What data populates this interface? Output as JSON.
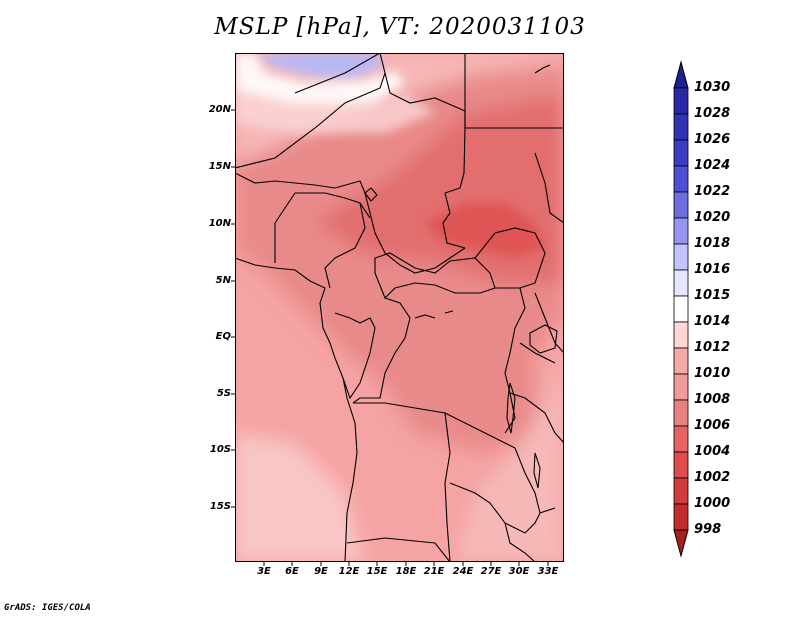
{
  "title": "MSLP [hPa], VT: 2020031103",
  "credit": "GrADS: IGES/COLA",
  "map": {
    "lat_labels": [
      "20N",
      "15N",
      "10N",
      "5N",
      "EQ",
      "5S",
      "10S",
      "15S"
    ],
    "lon_labels": [
      "3E",
      "6E",
      "9E",
      "12E",
      "15E",
      "18E",
      "21E",
      "24E",
      "27E",
      "30E",
      "33E"
    ]
  },
  "colorbar": {
    "labels": [
      "1030",
      "1028",
      "1026",
      "1024",
      "1022",
      "1020",
      "1018",
      "1016",
      "1015",
      "1014",
      "1012",
      "1010",
      "1008",
      "1006",
      "1004",
      "1002",
      "1000",
      "998"
    ],
    "colors": [
      "#1e1e96",
      "#2828a5",
      "#3232b4",
      "#3c3cc3",
      "#5050d2",
      "#6e6ee1",
      "#9696f0",
      "#c3c3ff",
      "#e6e6ff",
      "#ffffff",
      "#ffd7d7",
      "#f5aaaa",
      "#f09b9b",
      "#e68282",
      "#e66464",
      "#e04b4b",
      "#d23c3c",
      "#c32d2d",
      "#aa1e1e"
    ]
  }
}
